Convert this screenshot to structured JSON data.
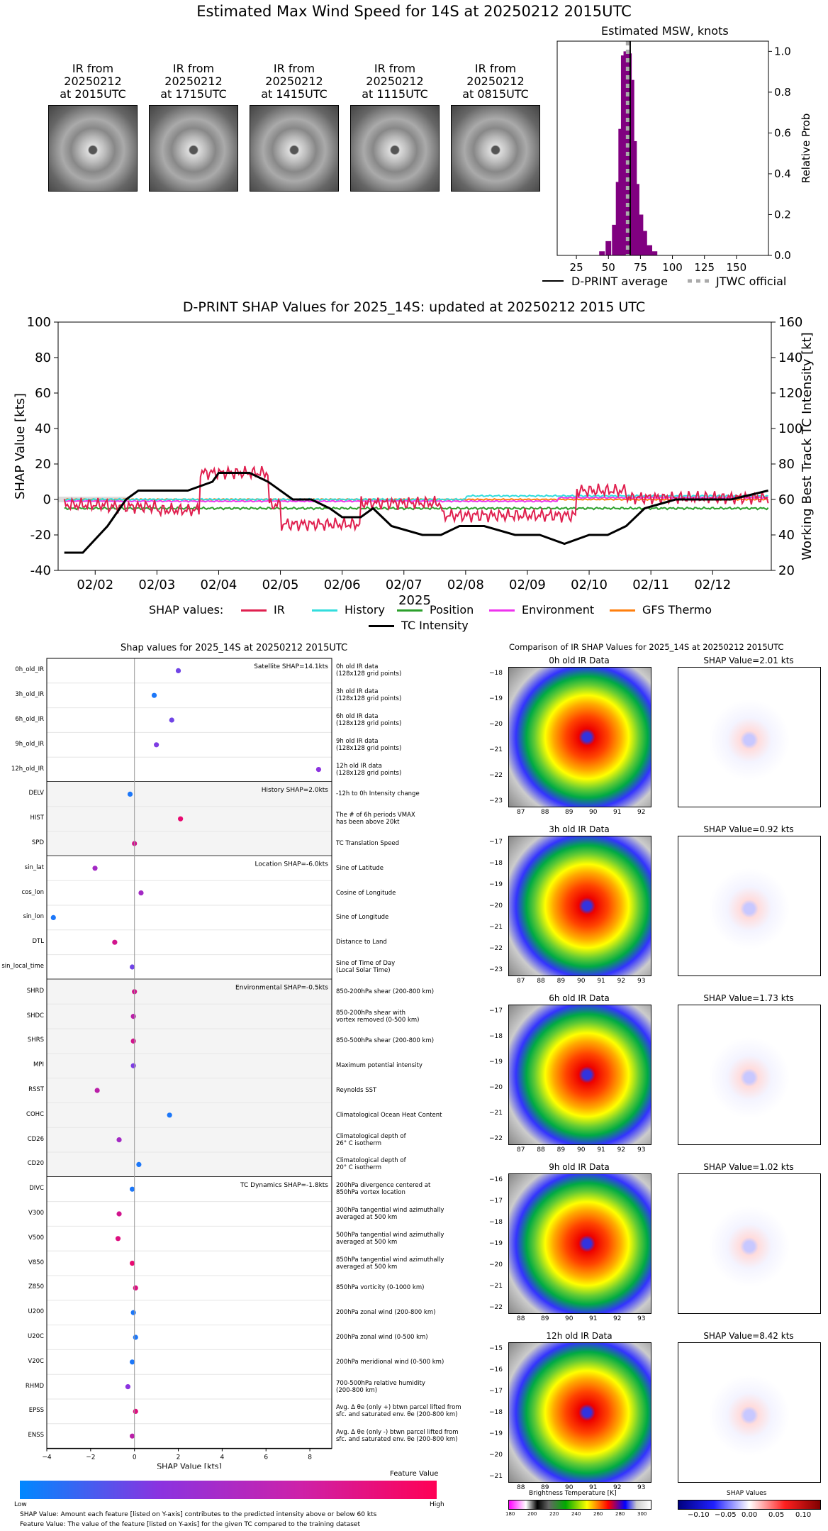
{
  "header": {
    "title": "Estimated Max Wind Speed for 14S at 20250212 2015UTC"
  },
  "ir_thumbs": [
    {
      "line1": "IR from",
      "line2": "20250212",
      "line3": "at 2015UTC"
    },
    {
      "line1": "IR from",
      "line2": "20250212",
      "line3": "at 1715UTC"
    },
    {
      "line1": "IR from",
      "line2": "20250212",
      "line3": "at 1415UTC"
    },
    {
      "line1": "IR from",
      "line2": "20250212",
      "line3": "at 1115UTC"
    },
    {
      "line1": "IR from",
      "line2": "20250212",
      "line3": "at 0815UTC"
    }
  ],
  "chart_data": [
    {
      "type": "bar",
      "title": "Estimated MSW, knots",
      "ylabel": "Relative Prob",
      "xlim": [
        10,
        175
      ],
      "ylim": [
        0,
        1.05
      ],
      "xticks": [
        "25",
        "50",
        "75",
        "100",
        "125",
        "150"
      ],
      "yticks": [
        "0.0",
        "0.2",
        "0.4",
        "0.6",
        "0.8",
        "1.0"
      ],
      "bins": [
        45,
        50,
        55,
        58,
        60,
        62,
        64,
        66,
        68,
        70,
        72,
        75,
        78,
        82,
        86
      ],
      "values": [
        0.02,
        0.07,
        0.15,
        0.36,
        0.62,
        0.98,
        1.0,
        0.99,
        0.86,
        0.56,
        0.35,
        0.2,
        0.12,
        0.05,
        0.02
      ],
      "dprint_average": 67,
      "jtwc_official": 65,
      "legend": [
        "D-PRINT average",
        "JTWC official"
      ],
      "colors": {
        "bars": "#800080",
        "average": "#000000",
        "jtwc": "#aaaaaa"
      }
    },
    {
      "type": "line",
      "title": "D-PRINT SHAP Values for 2025_14S: updated at 20250212 2015 UTC",
      "xlabel": "2025",
      "ylabel": "SHAP Value [kts]",
      "ylabel_right": "Working Best Track TC Intensity [kt]",
      "xticks": [
        "02/02",
        "02/03",
        "02/04",
        "02/05",
        "02/06",
        "02/07",
        "02/08",
        "02/09",
        "02/10",
        "02/11",
        "02/12"
      ],
      "yticks": [
        "-40",
        "-20",
        "0",
        "20",
        "40",
        "60",
        "80",
        "100"
      ],
      "yticks_right": [
        "20",
        "40",
        "60",
        "80",
        "100",
        "120",
        "140",
        "160"
      ],
      "ylim": [
        -40,
        100
      ],
      "ylim_right": [
        20,
        160
      ],
      "legend_prefix": "SHAP values:",
      "legend": [
        "IR",
        "History",
        "Position",
        "Environment",
        "GFS Thermo",
        "TC Intensity"
      ],
      "colors": {
        "IR": "#e0204f",
        "History": "#33dddd",
        "Position": "#2ca02c",
        "Environment": "#ee33ee",
        "GFS Thermo": "#ff7f0e",
        "TC Intensity": "#000000"
      },
      "x_days": [
        1.5,
        1.8,
        2.2,
        2.5,
        2.7,
        3.5,
        3.9,
        4.0,
        4.5,
        4.8,
        5.2,
        5.5,
        5.8,
        6.0,
        6.3,
        6.5,
        6.8,
        7.3,
        7.6,
        7.9,
        8.3,
        8.8,
        9.2,
        9.6,
        10.0,
        10.3,
        10.6,
        10.9,
        11.4,
        11.9,
        12.3,
        12.9
      ],
      "tc_intensity": [
        30,
        30,
        45,
        60,
        65,
        65,
        70,
        75,
        75,
        70,
        60,
        60,
        55,
        50,
        50,
        55,
        45,
        40,
        40,
        45,
        45,
        40,
        40,
        35,
        40,
        40,
        45,
        55,
        60,
        60,
        60,
        65
      ]
    },
    {
      "type": "scatter",
      "title": "Shap values for 2025_14S at 20250212 2015UTC",
      "xlabel": "SHAP Value [kts]",
      "xlim": [
        -4,
        9
      ],
      "xticks": [
        "−4",
        "−2",
        "0",
        "2",
        "4",
        "6",
        "8"
      ],
      "colorbar": {
        "title": "Feature Value",
        "low": "Low",
        "high": "High"
      },
      "groups": [
        {
          "summary": "Satellite SHAP=14.1kts",
          "features": [
            {
              "name": "0h_old_IR",
              "desc1": "0h old IR data",
              "desc2": "(128x128 grid points)",
              "shap": 2.0,
              "value": 0.4
            },
            {
              "name": "3h_old_IR",
              "desc1": "3h old IR data",
              "desc2": "(128x128 grid points)",
              "shap": 0.9,
              "value": 0.1
            },
            {
              "name": "6h_old_IR",
              "desc1": "6h old IR data",
              "desc2": "(128x128 grid points)",
              "shap": 1.7,
              "value": 0.4
            },
            {
              "name": "9h_old_IR",
              "desc1": "9h old IR data",
              "desc2": "(128x128 grid points)",
              "shap": 1.0,
              "value": 0.45
            },
            {
              "name": "12h_old_IR",
              "desc1": "12h old IR data",
              "desc2": "(128x128 grid points)",
              "shap": 8.4,
              "value": 0.5
            }
          ]
        },
        {
          "summary": "History SHAP=2.0kts",
          "features": [
            {
              "name": "DELV",
              "desc1": "-12h to 0h Intensity change",
              "desc2": "",
              "shap": -0.2,
              "value": 0.1
            },
            {
              "name": "HIST",
              "desc1": "The # of 6h periods VMAX",
              "desc2": "has been above 20kt",
              "shap": 2.1,
              "value": 0.9
            },
            {
              "name": "SPD",
              "desc1": "TC Translation Speed",
              "desc2": "",
              "shap": 0.0,
              "value": 0.8
            }
          ]
        },
        {
          "summary": "Location SHAP=-6.0kts",
          "features": [
            {
              "name": "sin_lat",
              "desc1": "Sine of Latitude",
              "desc2": "",
              "shap": -1.8,
              "value": 0.6
            },
            {
              "name": "cos_lon",
              "desc1": "Cosine of Longitude",
              "desc2": "",
              "shap": 0.3,
              "value": 0.6
            },
            {
              "name": "sin_lon",
              "desc1": "Sine of Longitude",
              "desc2": "",
              "shap": -3.7,
              "value": 0.1
            },
            {
              "name": "DTL",
              "desc1": "Distance to Land",
              "desc2": "",
              "shap": -0.9,
              "value": 0.8
            },
            {
              "name": "sin_local_time",
              "desc1": "Sine of Time of Day",
              "desc2": "(Local Solar Time)",
              "shap": -0.1,
              "value": 0.4
            }
          ]
        },
        {
          "summary": "Environmental SHAP=-0.5kts",
          "features": [
            {
              "name": "SHRD",
              "desc1": "850-200hPa shear (200-800 km)",
              "desc2": "",
              "shap": 0.0,
              "value": 0.8
            },
            {
              "name": "SHDC",
              "desc1": "850-200hPa shear with",
              "desc2": "vortex removed (0-500 km)",
              "shap": -0.05,
              "value": 0.7
            },
            {
              "name": "SHRS",
              "desc1": "850-500hPa shear (200-800 km)",
              "desc2": "",
              "shap": -0.05,
              "value": 0.8
            },
            {
              "name": "MPI",
              "desc1": "Maximum potential intensity",
              "desc2": "",
              "shap": -0.05,
              "value": 0.45
            },
            {
              "name": "RSST",
              "desc1": "Reynolds SST",
              "desc2": "",
              "shap": -1.7,
              "value": 0.7
            },
            {
              "name": "COHC",
              "desc1": "Climatological Ocean Heat Content",
              "desc2": "",
              "shap": 1.6,
              "value": 0.1
            },
            {
              "name": "CD26",
              "desc1": "Climatological depth of",
              "desc2": "26° C isotherm",
              "shap": -0.7,
              "value": 0.6
            },
            {
              "name": "CD20",
              "desc1": "Climatological depth of",
              "desc2": "20° C isotherm",
              "shap": 0.2,
              "value": 0.1
            }
          ]
        },
        {
          "summary": "TC Dynamics SHAP=-1.8kts",
          "features": [
            {
              "name": "DIVC",
              "desc1": "200hPa divergence centered at",
              "desc2": "850hPa vortex location",
              "shap": -0.1,
              "value": 0.1
            },
            {
              "name": "V300",
              "desc1": "300hPa tangential wind azimuthally",
              "desc2": "averaged at 500 km",
              "shap": -0.7,
              "value": 0.8
            },
            {
              "name": "V500",
              "desc1": "500hPa tangential wind azimuthally",
              "desc2": "averaged at 500 km",
              "shap": -0.75,
              "value": 0.85
            },
            {
              "name": "V850",
              "desc1": "850hPa tangential wind azimuthally",
              "desc2": "averaged at 500 km",
              "shap": -0.1,
              "value": 0.9
            },
            {
              "name": "Z850",
              "desc1": "850hPa vorticity (0-1000 km)",
              "desc2": "",
              "shap": 0.05,
              "value": 0.85
            },
            {
              "name": "U200",
              "desc1": "200hPa zonal wind (200-800 km)",
              "desc2": "",
              "shap": -0.05,
              "value": 0.1
            },
            {
              "name": "U20C",
              "desc1": "200hPa zonal wind (0-500 km)",
              "desc2": "",
              "shap": 0.05,
              "value": 0.1
            },
            {
              "name": "V20C",
              "desc1": "200hPa meridional wind (0-500 km)",
              "desc2": "",
              "shap": -0.1,
              "value": 0.1
            },
            {
              "name": "RHMD",
              "desc1": "700-500hPa relative humidity",
              "desc2": "(200-800 km)",
              "shap": -0.3,
              "value": 0.5
            },
            {
              "name": "EPSS",
              "desc1": "Avg. Δ θe (only +) btwn parcel lifted from",
              "desc2": "sfc. and saturated env. θe (200-800 km)",
              "shap": 0.05,
              "value": 0.85
            },
            {
              "name": "ENSS",
              "desc1": "Avg. Δ θe (only -) btwn parcel lifted from",
              "desc2": "sfc. and saturated env. θe (200-800 km)",
              "shap": -0.1,
              "value": 0.7
            }
          ]
        }
      ]
    }
  ],
  "footnotes": {
    "line1": "SHAP Value: Amount each feature [listed on Y-axis] contributes to the predicted intensity above or below 60 kts",
    "line2": "Feature Value: The value of the feature [listed on Y-axis] for the given TC compared to the training dataset"
  },
  "ir_comparison": {
    "title": "Comparison of IR SHAP Values for 2025_14S at 20250212 2015UTC",
    "panels": [
      {
        "label": "0h old IR Data",
        "shap": "SHAP Value=2.01 kts",
        "yticks": [
          "−18",
          "−19",
          "−20",
          "−21",
          "−22",
          "−23"
        ],
        "xticks": [
          "87",
          "88",
          "89",
          "90",
          "91",
          "92"
        ]
      },
      {
        "label": "3h old IR Data",
        "shap": "SHAP Value=0.92 kts",
        "yticks": [
          "−17",
          "−18",
          "−19",
          "−20",
          "−21",
          "−22",
          "−23"
        ],
        "xticks": [
          "87",
          "88",
          "89",
          "90",
          "91",
          "92",
          "93"
        ]
      },
      {
        "label": "6h old IR Data",
        "shap": "SHAP Value=1.73 kts",
        "yticks": [
          "−17",
          "−18",
          "−19",
          "−20",
          "−21",
          "−22"
        ],
        "xticks": [
          "87",
          "88",
          "89",
          "90",
          "91",
          "92",
          "93"
        ]
      },
      {
        "label": "9h old IR Data",
        "shap": "SHAP Value=1.02 kts",
        "yticks": [
          "−16",
          "−17",
          "−18",
          "−19",
          "−20",
          "−21",
          "−22"
        ],
        "xticks": [
          "88",
          "89",
          "90",
          "91",
          "92",
          "93"
        ]
      },
      {
        "label": "12h old IR Data",
        "shap": "SHAP Value=8.42 kts",
        "yticks": [
          "−15",
          "−16",
          "−17",
          "−18",
          "−19",
          "−20",
          "−21"
        ],
        "xticks": [
          "88",
          "89",
          "90",
          "91",
          "92",
          "93"
        ]
      }
    ],
    "colorbar_bt": {
      "title": "Brightness Temperature [K]",
      "ticks": [
        "180",
        "200",
        "220",
        "240",
        "260",
        "280",
        "300"
      ]
    },
    "colorbar_shap": {
      "title": "SHAP Values",
      "ticks": [
        "−0.10",
        "−0.05",
        "0.00",
        "0.05",
        "0.10"
      ]
    }
  }
}
